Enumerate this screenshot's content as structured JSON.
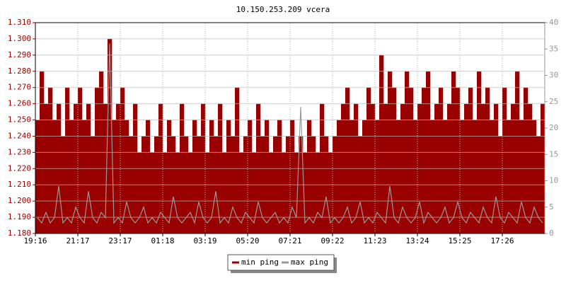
{
  "chart_data": {
    "type": "bar",
    "title": "10.150.253.209 vcera",
    "categories": [
      "19:16",
      null,
      null,
      null,
      null,
      null,
      null,
      null,
      null,
      null,
      "21:17",
      null,
      null,
      null,
      null,
      null,
      null,
      null,
      null,
      null,
      "23:17",
      null,
      null,
      null,
      null,
      null,
      null,
      null,
      null,
      null,
      "01:18",
      null,
      null,
      null,
      null,
      null,
      null,
      null,
      null,
      null,
      "03:19",
      null,
      null,
      null,
      null,
      null,
      null,
      null,
      null,
      null,
      "05:20",
      null,
      null,
      null,
      null,
      null,
      null,
      null,
      null,
      null,
      "07:21",
      null,
      null,
      null,
      null,
      null,
      null,
      null,
      null,
      null,
      "09:22",
      null,
      null,
      null,
      null,
      null,
      null,
      null,
      null,
      null,
      "11:23",
      null,
      null,
      null,
      null,
      null,
      null,
      null,
      null,
      null,
      "13:24",
      null,
      null,
      null,
      null,
      null,
      null,
      null,
      null,
      null,
      "15:25",
      null,
      null,
      null,
      null,
      null,
      null,
      null,
      null,
      null,
      "17:26",
      null,
      null,
      null,
      null,
      null,
      null,
      null,
      null,
      null
    ],
    "series": [
      {
        "name": "min ping",
        "color": "#990000",
        "values": [
          1.25,
          1.28,
          1.26,
          1.27,
          1.25,
          1.26,
          1.24,
          1.27,
          1.25,
          1.26,
          1.27,
          1.25,
          1.26,
          1.24,
          1.27,
          1.28,
          1.26,
          1.3,
          1.25,
          1.26,
          1.27,
          1.25,
          1.24,
          1.26,
          1.23,
          1.24,
          1.25,
          1.23,
          1.24,
          1.26,
          1.23,
          1.25,
          1.24,
          1.23,
          1.26,
          1.24,
          1.23,
          1.25,
          1.24,
          1.26,
          1.23,
          1.25,
          1.24,
          1.26,
          1.23,
          1.25,
          1.24,
          1.27,
          1.23,
          1.24,
          1.25,
          1.23,
          1.26,
          1.24,
          1.25,
          1.23,
          1.24,
          1.25,
          1.23,
          1.24,
          1.25,
          1.23,
          1.24,
          1.23,
          1.25,
          1.24,
          1.23,
          1.26,
          1.24,
          1.23,
          1.24,
          1.25,
          1.26,
          1.27,
          1.25,
          1.26,
          1.24,
          1.25,
          1.27,
          1.26,
          1.25,
          1.29,
          1.26,
          1.28,
          1.27,
          1.25,
          1.26,
          1.28,
          1.27,
          1.25,
          1.26,
          1.27,
          1.28,
          1.25,
          1.26,
          1.27,
          1.25,
          1.26,
          1.28,
          1.27,
          1.25,
          1.26,
          1.27,
          1.25,
          1.28,
          1.26,
          1.27,
          1.25,
          1.26,
          1.24,
          1.27,
          1.25,
          1.26,
          1.28,
          1.25,
          1.27,
          1.26,
          1.25,
          1.24,
          1.26
        ]
      },
      {
        "name": "max ping",
        "color": "#999999",
        "type": "line",
        "axis": "y2",
        "values": [
          3,
          2,
          4,
          2,
          3,
          9,
          2,
          3,
          2,
          5,
          3,
          2,
          8,
          3,
          2,
          4,
          3,
          36,
          2,
          3,
          2,
          6,
          3,
          2,
          3,
          5,
          2,
          3,
          2,
          4,
          3,
          2,
          7,
          3,
          2,
          3,
          4,
          2,
          6,
          3,
          2,
          3,
          8,
          2,
          3,
          2,
          5,
          3,
          2,
          4,
          3,
          2,
          6,
          3,
          2,
          3,
          4,
          2,
          3,
          2,
          5,
          3,
          24,
          2,
          3,
          2,
          4,
          3,
          7,
          2,
          3,
          2,
          3,
          5,
          2,
          3,
          6,
          2,
          3,
          2,
          4,
          3,
          2,
          9,
          3,
          2,
          5,
          3,
          2,
          3,
          6,
          2,
          4,
          3,
          2,
          3,
          5,
          2,
          3,
          6,
          3,
          2,
          4,
          3,
          2,
          5,
          3,
          2,
          7,
          3,
          2,
          4,
          3,
          2,
          6,
          3,
          2,
          5,
          3,
          2
        ]
      }
    ],
    "ylim": [
      1.18,
      1.31
    ],
    "yticks": [
      {
        "value": 1.18,
        "label": "1.180"
      },
      {
        "value": 1.19,
        "label": "1.190"
      },
      {
        "value": 1.2,
        "label": "1.200"
      },
      {
        "value": 1.21,
        "label": "1.210"
      },
      {
        "value": 1.22,
        "label": "1.220"
      },
      {
        "value": 1.23,
        "label": "1.230"
      },
      {
        "value": 1.24,
        "label": "1.240"
      },
      {
        "value": 1.25,
        "label": "1.250"
      },
      {
        "value": 1.26,
        "label": "1.260"
      },
      {
        "value": 1.27,
        "label": "1.270"
      },
      {
        "value": 1.28,
        "label": "1.280"
      },
      {
        "value": 1.29,
        "label": "1.290"
      },
      {
        "value": 1.3,
        "label": "1.300"
      },
      {
        "value": 1.31,
        "label": "1.310"
      }
    ],
    "y2lim": [
      0,
      40
    ],
    "y2ticks": [
      0,
      5,
      10,
      15,
      20,
      25,
      30,
      35,
      40
    ],
    "grid": true
  }
}
